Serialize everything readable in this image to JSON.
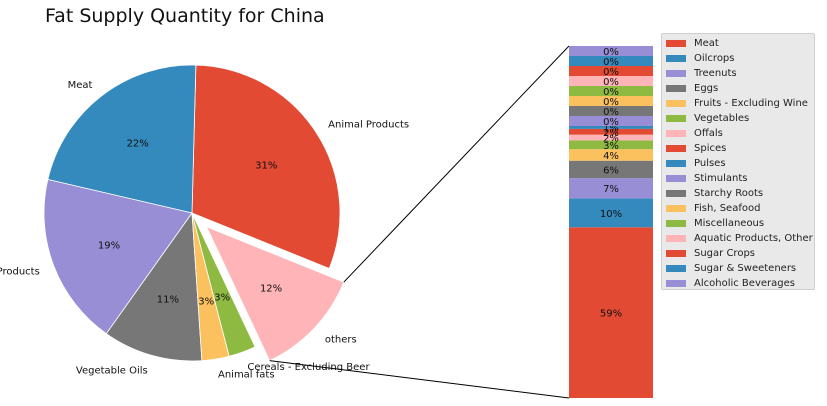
{
  "chart_data": [
    {
      "type": "pie",
      "title": "Fat Supply Quantity for China",
      "slices": [
        {
          "label": "Animal Products",
          "value": 31,
          "pct_label": "31%",
          "color": "#E24A33"
        },
        {
          "label": "Meat",
          "value": 22,
          "pct_label": "22%",
          "color": "#348ABD"
        },
        {
          "label": "Vegetal Products",
          "value": 19,
          "pct_label": "19%",
          "color": "#988ED5"
        },
        {
          "label": "Vegetable Oils",
          "value": 11,
          "pct_label": "11%",
          "color": "#777777"
        },
        {
          "label": "Animal fats",
          "value": 3,
          "pct_label": "3%",
          "color": "#FBC15E"
        },
        {
          "label": "Cereals - Excluding Beer",
          "value": 3,
          "pct_label": "3%",
          "color": "#8EBA42"
        },
        {
          "label": "others",
          "value": 12,
          "pct_label": "12%",
          "color": "#FFB5B8",
          "exploded": true
        }
      ]
    },
    {
      "type": "bar",
      "stacked": true,
      "values": [
        59,
        10,
        7,
        6,
        4,
        3,
        2,
        2,
        1,
        0,
        0,
        0,
        0,
        0,
        0,
        0,
        0
      ],
      "value_labels": [
        "59%",
        "10%",
        "7%",
        "6%",
        "4%",
        "3%",
        "2%",
        "2%",
        "1%",
        "0%",
        "0%",
        "0%",
        "0%",
        "0%",
        "0%",
        "0%",
        "0%"
      ],
      "bar_colors": [
        "#E24A33",
        "#348ABD",
        "#988ED5",
        "#777777",
        "#FBC15E",
        "#8EBA42",
        "#FFB5B8",
        "#E24A33",
        "#348ABD",
        "#988ED5",
        "#777777",
        "#FBC15E",
        "#8EBA42",
        "#FFB5B8",
        "#E24A33",
        "#348ABD",
        "#988ED5"
      ],
      "legend_position": "right",
      "legend": [
        {
          "label": "Meat",
          "color": "#E24A33"
        },
        {
          "label": "Oilcrops",
          "color": "#348ABD"
        },
        {
          "label": "Treenuts",
          "color": "#988ED5"
        },
        {
          "label": "Eggs",
          "color": "#777777"
        },
        {
          "label": "Fruits - Excluding Wine",
          "color": "#FBC15E"
        },
        {
          "label": "Vegetables",
          "color": "#8EBA42"
        },
        {
          "label": "Offals",
          "color": "#FFB5B8"
        },
        {
          "label": "Spices",
          "color": "#E24A33"
        },
        {
          "label": "Pulses",
          "color": "#348ABD"
        },
        {
          "label": "Stimulants",
          "color": "#988ED5"
        },
        {
          "label": "Starchy Roots",
          "color": "#777777"
        },
        {
          "label": "Fish, Seafood",
          "color": "#FBC15E"
        },
        {
          "label": "Miscellaneous",
          "color": "#8EBA42"
        },
        {
          "label": "Aquatic Products, Other",
          "color": "#FFB5B8"
        },
        {
          "label": "Sugar Crops",
          "color": "#E24A33"
        },
        {
          "label": "Sugar & Sweeteners",
          "color": "#348ABD"
        },
        {
          "label": "Alcoholic Beverages",
          "color": "#988ED5"
        }
      ]
    }
  ]
}
